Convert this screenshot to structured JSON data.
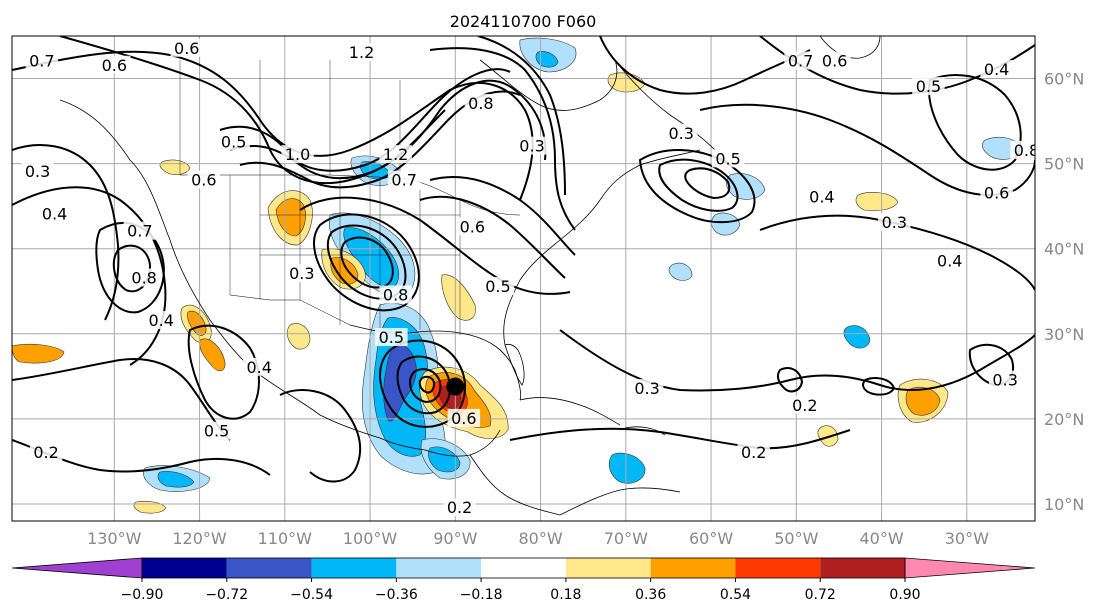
{
  "title": "2024110700 F060",
  "map": {
    "lon_labels": [
      "130°W",
      "120°W",
      "110°W",
      "100°W",
      "90°W",
      "80°W",
      "70°W",
      "60°W",
      "50°W",
      "40°W",
      "30°W"
    ],
    "lat_labels": [
      "60°N",
      "50°N",
      "40°N",
      "30°N",
      "20°N",
      "10°N"
    ],
    "lon_values": [
      -130,
      -120,
      -110,
      -100,
      -90,
      -80,
      -70,
      -60,
      -50,
      -40,
      -30
    ],
    "lat_values": [
      60,
      50,
      40,
      30,
      20,
      10
    ],
    "lon_range": [
      -142,
      -22
    ],
    "lat_range": [
      8,
      65
    ],
    "grid": true,
    "tick_label_color": "#888888"
  },
  "contours": {
    "color": "#000000",
    "labels": [
      {
        "text": "0.7",
        "lon": -138.5,
        "lat": 62.0
      },
      {
        "text": "0.6",
        "lon": -130.0,
        "lat": 61.5
      },
      {
        "text": "0.6",
        "lon": -121.5,
        "lat": 63.5
      },
      {
        "text": "1.2",
        "lon": -101.0,
        "lat": 63.0
      },
      {
        "text": "0.8",
        "lon": -87.0,
        "lat": 57.0
      },
      {
        "text": "0.5",
        "lon": -116.0,
        "lat": 52.5
      },
      {
        "text": "1.0",
        "lon": -108.5,
        "lat": 51.0
      },
      {
        "text": "1.2",
        "lon": -97.0,
        "lat": 51.0
      },
      {
        "text": "0.7",
        "lon": -96.0,
        "lat": 48.0
      },
      {
        "text": "0.3",
        "lon": -139.0,
        "lat": 49.0
      },
      {
        "text": "0.6",
        "lon": -119.5,
        "lat": 48.0
      },
      {
        "text": "0.4",
        "lon": -137.0,
        "lat": 44.0
      },
      {
        "text": "0.7",
        "lon": -127.0,
        "lat": 42.0
      },
      {
        "text": "0.8",
        "lon": -126.5,
        "lat": 36.5
      },
      {
        "text": "0.4",
        "lon": -124.5,
        "lat": 31.5
      },
      {
        "text": "0.3",
        "lon": -108.0,
        "lat": 37.0
      },
      {
        "text": "0.8",
        "lon": -97.0,
        "lat": 34.5
      },
      {
        "text": "0.6",
        "lon": -88.0,
        "lat": 42.5
      },
      {
        "text": "0.5",
        "lon": -85.0,
        "lat": 35.5
      },
      {
        "text": "0.3",
        "lon": -81.0,
        "lat": 52.0
      },
      {
        "text": "0.7",
        "lon": -49.5,
        "lat": 62.0
      },
      {
        "text": "0.6",
        "lon": -45.5,
        "lat": 62.0
      },
      {
        "text": "0.5",
        "lon": -34.5,
        "lat": 59.0
      },
      {
        "text": "0.4",
        "lon": -26.5,
        "lat": 61.0
      },
      {
        "text": "0.8",
        "lon": -23.0,
        "lat": 51.5
      },
      {
        "text": "0.6",
        "lon": -26.5,
        "lat": 46.5
      },
      {
        "text": "0.3",
        "lon": -63.5,
        "lat": 53.5
      },
      {
        "text": "0.5",
        "lon": -58.0,
        "lat": 50.5
      },
      {
        "text": "0.4",
        "lon": -47.0,
        "lat": 46.0
      },
      {
        "text": "0.3",
        "lon": -38.5,
        "lat": 43.0
      },
      {
        "text": "0.4",
        "lon": -32.0,
        "lat": 38.5
      },
      {
        "text": "0.3",
        "lon": -67.5,
        "lat": 23.5
      },
      {
        "text": "0.2",
        "lon": -49.0,
        "lat": 21.5
      },
      {
        "text": "0.2",
        "lon": -55.0,
        "lat": 16.0
      },
      {
        "text": "0.3",
        "lon": -25.5,
        "lat": 24.5
      },
      {
        "text": "0.4",
        "lon": -113.0,
        "lat": 26.0
      },
      {
        "text": "0.5",
        "lon": -97.5,
        "lat": 29.5
      },
      {
        "text": "0.5",
        "lon": -118.0,
        "lat": 18.5
      },
      {
        "text": "0.2",
        "lon": -138.0,
        "lat": 16.0
      },
      {
        "text": "0.6",
        "lon": -89.0,
        "lat": 20.0
      },
      {
        "text": "0.2",
        "lon": -89.5,
        "lat": 9.5
      }
    ]
  },
  "center_marker": {
    "lon": -90.0,
    "lat": 23.8,
    "color": "#000000"
  },
  "colorbar": {
    "bins": [
      {
        "color": "#a040d0"
      },
      {
        "color": "#000090"
      },
      {
        "color": "#3a55c8"
      },
      {
        "color": "#00b8f8"
      },
      {
        "color": "#b0e0fc"
      },
      {
        "color": "#ffffff"
      },
      {
        "color": "#ffe88a"
      },
      {
        "color": "#ffa000"
      },
      {
        "color": "#ff3a00"
      },
      {
        "color": "#b01e20"
      },
      {
        "color": "#ff88b0"
      }
    ],
    "ticks": [
      "−0.90",
      "−0.72",
      "−0.54",
      "−0.36",
      "−0.18",
      "0.18",
      "0.36",
      "0.54",
      "0.72",
      "0.90"
    ],
    "tick_values": [
      -0.9,
      -0.72,
      -0.54,
      -0.36,
      -0.18,
      0.18,
      0.36,
      0.54,
      0.72,
      0.9
    ]
  }
}
